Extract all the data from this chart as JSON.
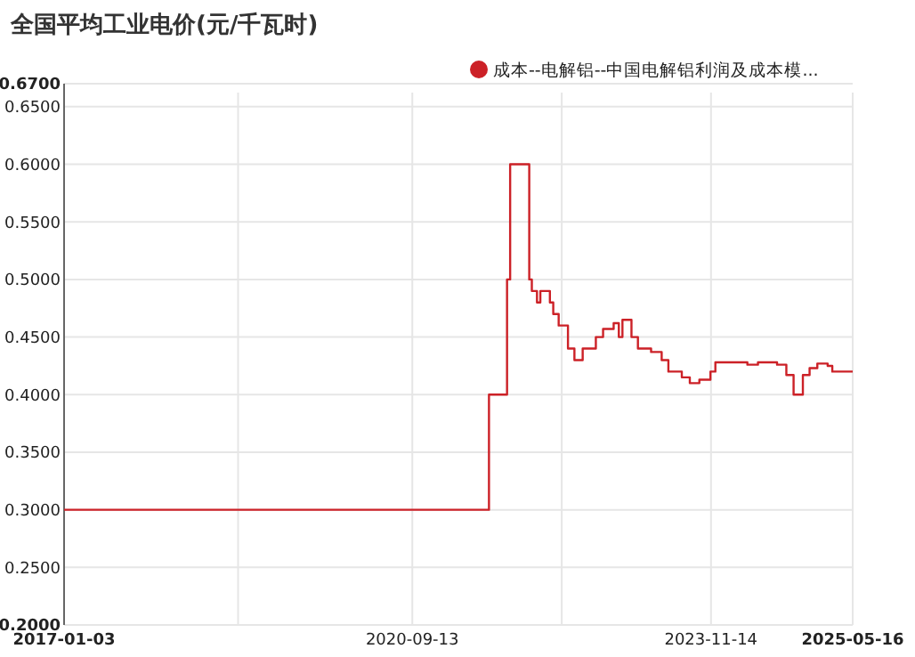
{
  "chart_data": {
    "type": "step",
    "title": "全国平均工业电价(元/千瓦时)",
    "legend": "top right",
    "grid": true,
    "marker": "none",
    "xlim": [
      "2017-01-03",
      "2025-05-16"
    ],
    "xticks": [
      {
        "value": "2017-01-03",
        "label": "2017-01-03"
      },
      {
        "value": "2018-11-08",
        "label": null
      },
      {
        "value": "2020-09-13",
        "label": "2020-09-13"
      },
      {
        "value": "2022-04-15",
        "label": null
      },
      {
        "value": "2023-11-14",
        "label": "2023-11-14"
      },
      {
        "value": "2025-05-16",
        "label": "2025-05-16"
      }
    ],
    "ylim": [
      0.2,
      0.67
    ],
    "yticks": [
      {
        "value": 0.2,
        "label": "0.2000"
      },
      {
        "value": 0.25,
        "label": "0.2500"
      },
      {
        "value": 0.3,
        "label": "0.3000"
      },
      {
        "value": 0.35,
        "label": "0.3500"
      },
      {
        "value": 0.4,
        "label": "0.4000"
      },
      {
        "value": 0.45,
        "label": "0.4500"
      },
      {
        "value": 0.5,
        "label": "0.5000"
      },
      {
        "value": 0.55,
        "label": "0.5500"
      },
      {
        "value": 0.6,
        "label": "0.6000"
      },
      {
        "value": 0.65,
        "label": "0.6500"
      },
      {
        "value": 0.67,
        "label": "0.6700"
      }
    ],
    "series": [
      {
        "name": "成本--电解铝--中国电解铝利润及成本模...",
        "color": "#cc2127",
        "x": [
          "2017-01-03",
          "2021-07-07",
          "2021-09-15",
          "2021-09-27",
          "2021-12-10",
          "2021-12-20",
          "2022-01-09",
          "2022-01-22",
          "2022-02-28",
          "2022-03-13",
          "2022-04-03",
          "2022-05-09",
          "2022-06-03",
          "2022-07-05",
          "2022-08-25",
          "2022-09-22",
          "2022-11-02",
          "2022-11-22",
          "2022-12-06",
          "2023-01-10",
          "2023-02-04",
          "2023-03-27",
          "2023-05-07",
          "2023-06-02",
          "2023-07-24",
          "2023-08-24",
          "2023-09-30",
          "2023-11-12",
          "2023-12-01",
          "2024-04-03",
          "2024-05-14",
          "2024-07-27",
          "2024-09-01",
          "2024-09-29",
          "2024-11-04",
          "2024-11-30",
          "2024-12-30",
          "2025-02-08",
          "2025-02-26",
          "2025-05-16"
        ],
        "values": [
          0.3,
          0.4,
          0.5,
          0.6,
          0.5,
          0.49,
          0.48,
          0.49,
          0.48,
          0.47,
          0.46,
          0.44,
          0.43,
          0.44,
          0.45,
          0.457,
          0.462,
          0.45,
          0.465,
          0.45,
          0.44,
          0.437,
          0.43,
          0.42,
          0.415,
          0.41,
          0.413,
          0.42,
          0.428,
          0.426,
          0.428,
          0.426,
          0.417,
          0.4,
          0.417,
          0.423,
          0.427,
          0.425,
          0.42,
          0.42
        ]
      }
    ]
  }
}
